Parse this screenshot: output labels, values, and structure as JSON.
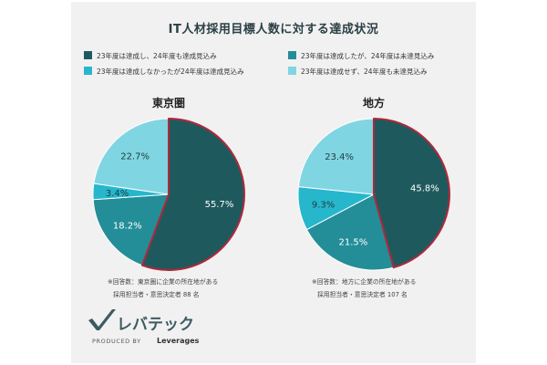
{
  "chart_data": [
    {
      "type": "pie",
      "title": "東京圏",
      "slices": [
        {
          "label": "23年度は達成し、24年度も達成見込み",
          "value": 55.7,
          "display": "55.7%"
        },
        {
          "label": "23年度は達成したが、24年度は未達見込み",
          "value": 18.2,
          "display": "18.2%"
        },
        {
          "label": "23年度は達成しなかったが24年度は達成見込み",
          "value": 3.4,
          "display": "3.4%"
        },
        {
          "label": "23年度は達成せず、24年度も未達見込み",
          "value": 22.7,
          "display": "22.7%"
        }
      ],
      "note_lines": [
        "※回答数：東京圏に企業の所在地がある",
        "採用担当者・意思決定者 88 名"
      ]
    },
    {
      "type": "pie",
      "title": "地方",
      "slices": [
        {
          "label": "23年度は達成し、24年度も達成見込み",
          "value": 45.8,
          "display": "45.8%"
        },
        {
          "label": "23年度は達成したが、24年度は未達見込み",
          "value": 21.5,
          "display": "21.5%"
        },
        {
          "label": "23年度は達成しなかったが24年度は達成見込み",
          "value": 9.3,
          "display": "9.3%"
        },
        {
          "label": "23年度は達成せず、24年度も未達見込み",
          "value": 23.4,
          "display": "23.4%"
        }
      ],
      "note_lines": [
        "※回答数：地方に企業の所在地がある",
        "採用担当者・意思決定者 107 名"
      ]
    }
  ],
  "figure": {
    "title": "IT人材採用目標人数に対する達成状況",
    "legend": [
      {
        "label": "23年度は達成し、24年度も達成見込み",
        "color": "#1e5a5d"
      },
      {
        "label": "23年度は達成したが、24年度は未達見込み",
        "color": "#238e98"
      },
      {
        "label": "23年度は達成しなかったが24年度は達成見込み",
        "color": "#26b7cd"
      },
      {
        "label": "23年度は達成せず、24年度も未達見込み",
        "color": "#80d5e2"
      }
    ],
    "slice_colors": [
      "#1e5a5d",
      "#238e98",
      "#26b7cd",
      "#80d5e2"
    ],
    "highlight_color": "#b0283a",
    "highlight_slice": "23年度は達成し、24年度も達成見込み"
  },
  "footer": {
    "logo": "レバテック",
    "produced_by": "PRODUCED BY",
    "brand": "Leverages"
  }
}
